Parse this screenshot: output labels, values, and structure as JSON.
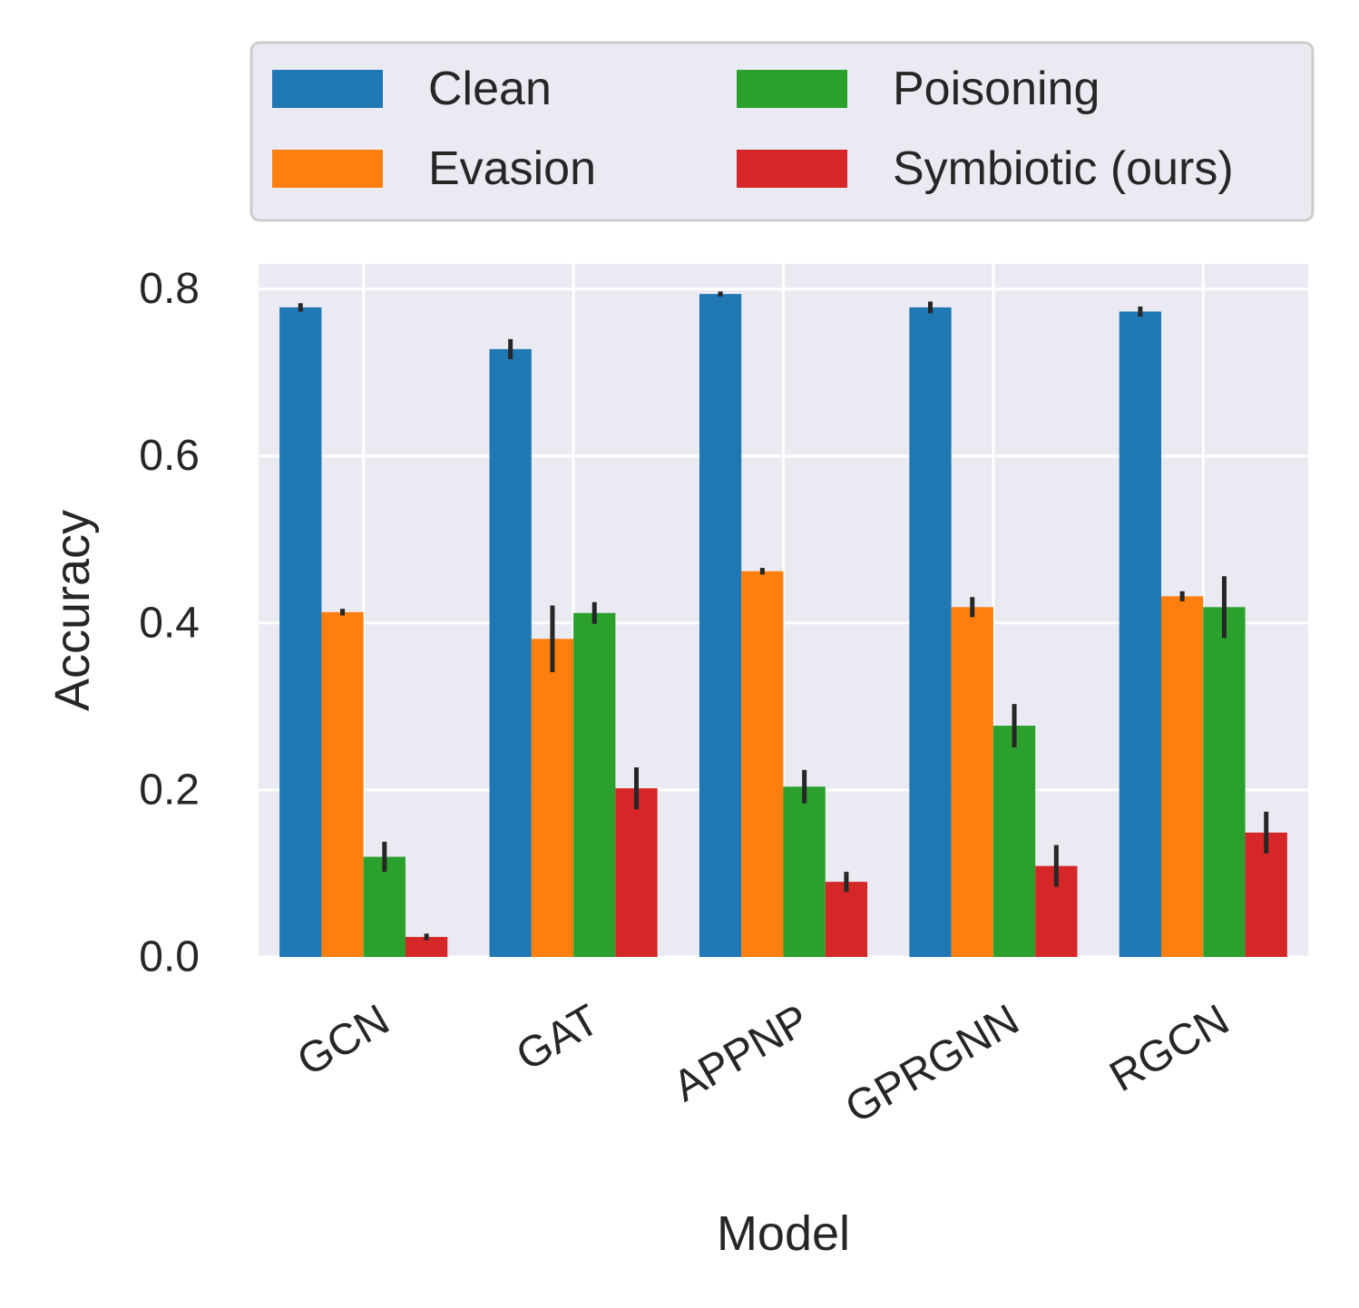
{
  "chart_data": {
    "type": "bar",
    "title": "",
    "xlabel": "Model",
    "ylabel": "Accuracy",
    "ylim": [
      0,
      0.83
    ],
    "yticks": [
      0.0,
      0.2,
      0.4,
      0.6,
      0.8
    ],
    "ytick_labels": [
      "0.0",
      "0.2",
      "0.4",
      "0.6",
      "0.8"
    ],
    "grid": true,
    "legend_position": "top, outside plot",
    "categories": [
      "GCN",
      "GAT",
      "APPNP",
      "GPRGNN",
      "RGCN"
    ],
    "series": [
      {
        "name": "Clean",
        "color": "#1f77b4",
        "values": [
          0.778,
          0.728,
          0.794,
          0.778,
          0.773
        ],
        "error": [
          0.005,
          0.012,
          0.003,
          0.007,
          0.006
        ]
      },
      {
        "name": "Evasion",
        "color": "#ff7f0e",
        "values": [
          0.413,
          0.381,
          0.462,
          0.419,
          0.432
        ],
        "error": [
          0.004,
          0.04,
          0.004,
          0.012,
          0.006
        ]
      },
      {
        "name": "Poisoning",
        "color": "#2ca02c",
        "values": [
          0.12,
          0.412,
          0.204,
          0.277,
          0.419
        ],
        "error": [
          0.018,
          0.013,
          0.02,
          0.026,
          0.037
        ]
      },
      {
        "name": "Symbiotic (ours)",
        "color": "#d62728",
        "values": [
          0.024,
          0.202,
          0.09,
          0.109,
          0.149
        ],
        "error": [
          0.004,
          0.025,
          0.012,
          0.025,
          0.025
        ]
      }
    ]
  }
}
